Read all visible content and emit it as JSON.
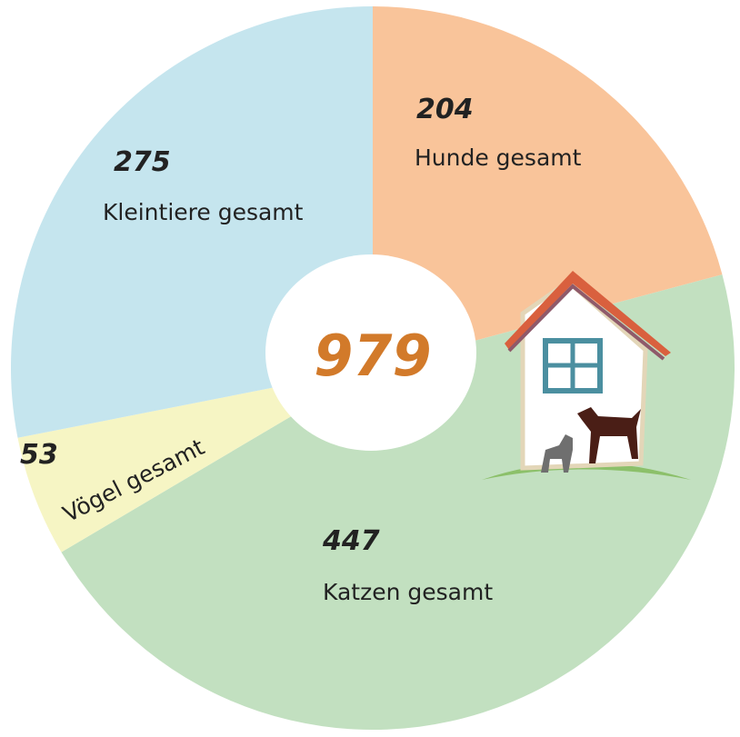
{
  "chart_data": {
    "type": "pie",
    "total": 979,
    "categories": [
      "Hunde gesamt",
      "Katzen gesamt",
      "Vögel gesamt",
      "Kleintiere gesamt"
    ],
    "values": [
      204,
      447,
      53,
      275
    ],
    "colors": [
      "#f9c49a",
      "#c2e0c0",
      "#f6f5c4",
      "#c5e5ee"
    ]
  }
}
